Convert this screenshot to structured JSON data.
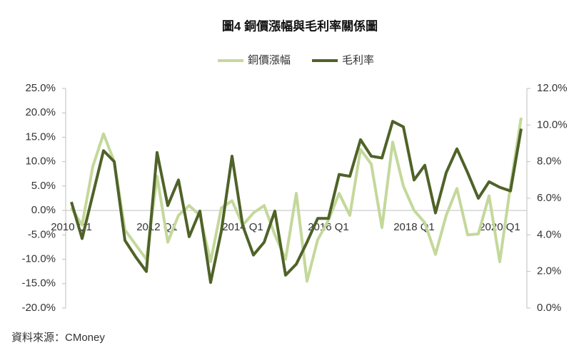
{
  "chart_data": {
    "type": "line",
    "title": "圖4 銅價漲幅與毛利率關係圖",
    "source": "資料來源：CMoney",
    "categories": [
      "2010 Q1",
      null,
      null,
      null,
      null,
      null,
      null,
      null,
      "2012 Q1",
      null,
      null,
      null,
      null,
      null,
      null,
      null,
      "2014 Q1",
      null,
      null,
      null,
      null,
      null,
      null,
      null,
      "2016 Q1",
      null,
      null,
      null,
      null,
      null,
      null,
      null,
      "2018 Q1",
      null,
      null,
      null,
      null,
      null,
      null,
      null,
      "2020 Q1",
      null,
      null
    ],
    "series": [
      {
        "name": "銅價漲幅",
        "color": "#c4d89b",
        "values": [
          0.5,
          -3,
          9,
          15.7,
          10,
          -4,
          -7,
          -10,
          7,
          -6.5,
          -1,
          1,
          -1,
          -10.5,
          0.5,
          2,
          -3,
          -0.5,
          1,
          -5,
          -10,
          3.5,
          -14.5,
          -6,
          -2,
          3.5,
          -1,
          12.5,
          9.5,
          -3.5,
          14,
          5,
          0,
          -2.5,
          -9,
          -1,
          4.5,
          -5,
          -4.8,
          3,
          -10.5,
          5,
          19
        ]
      },
      {
        "name": "毛利率",
        "color": "#4f6228",
        "axis": "y2",
        "values": [
          5.8,
          3.8,
          6.2,
          8.6,
          8.0,
          3.7,
          2.8,
          2.0,
          8.5,
          5.6,
          7.0,
          3.9,
          5.3,
          1.4,
          4.2,
          8.3,
          4.5,
          2.9,
          3.6,
          5.3,
          1.8,
          2.4,
          3.6,
          4.9,
          4.9,
          7.3,
          7.2,
          9.2,
          8.3,
          8.2,
          10.2,
          9.9,
          7.0,
          7.8,
          5.2,
          7.4,
          8.7,
          7.4,
          6.0,
          6.9,
          6.6,
          6.4,
          9.8
        ]
      }
    ],
    "ylim": [
      -20,
      25
    ],
    "yticks": [
      {
        "value": -20,
        "label": "-20.0%"
      },
      {
        "value": -15,
        "label": "-15.0%"
      },
      {
        "value": -10,
        "label": "-10.0%"
      },
      {
        "value": -5,
        "label": "-5.0%"
      },
      {
        "value": 0,
        "label": "0.0%"
      },
      {
        "value": 5,
        "label": "5.0%"
      },
      {
        "value": 10,
        "label": "10.0%"
      },
      {
        "value": 15,
        "label": "15.0%"
      },
      {
        "value": 20,
        "label": "20.0%"
      },
      {
        "value": 25,
        "label": "25.0%"
      }
    ],
    "y2lim": [
      0,
      12
    ],
    "y2ticks": [
      {
        "value": 0,
        "label": "0.0%"
      },
      {
        "value": 2,
        "label": "2.0%"
      },
      {
        "value": 4,
        "label": "4.0%"
      },
      {
        "value": 6,
        "label": "6.0%"
      },
      {
        "value": 8,
        "label": "8.0%"
      },
      {
        "value": 10,
        "label": "10.0%"
      },
      {
        "value": 12,
        "label": "12.0%"
      }
    ],
    "legend": "top",
    "grid": false
  }
}
